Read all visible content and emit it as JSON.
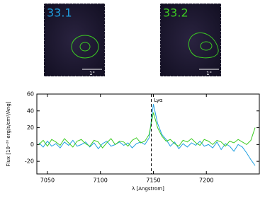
{
  "panels": [
    {
      "label": "33.1",
      "scale": "1\""
    },
    {
      "label": "33.2",
      "scale": "1\""
    }
  ],
  "chart_data": {
    "type": "line",
    "xlabel": "λ [Angstrom]",
    "ylabel": "Flux [10⁻²⁰ erg/s/cm²/Ang]",
    "x": [
      7042,
      7046,
      7050,
      7054,
      7058,
      7062,
      7066,
      7070,
      7074,
      7078,
      7082,
      7086,
      7090,
      7094,
      7098,
      7102,
      7106,
      7110,
      7114,
      7118,
      7122,
      7126,
      7130,
      7134,
      7138,
      7142,
      7146,
      7150,
      7154,
      7158,
      7162,
      7166,
      7170,
      7174,
      7178,
      7182,
      7186,
      7190,
      7194,
      7198,
      7202,
      7206,
      7210,
      7214,
      7218,
      7222,
      7226,
      7230,
      7234,
      7238,
      7242,
      7246
    ],
    "series": [
      {
        "color": "#1f9fe0",
        "values": [
          2,
          -3,
          4,
          -2,
          1,
          -4,
          3,
          -1,
          5,
          -2,
          0,
          3,
          -3,
          2,
          -5,
          1,
          4,
          -2,
          0,
          3,
          -1,
          2,
          -4,
          1,
          3,
          0,
          8,
          48,
          25,
          12,
          6,
          -2,
          3,
          -5,
          1,
          -3,
          2,
          -1,
          4,
          -2,
          0,
          -4,
          3,
          -6,
          1,
          -2,
          -8,
          0,
          -3,
          -10,
          -18,
          -25
        ]
      },
      {
        "color": "#3ccc22",
        "values": [
          0,
          5,
          -2,
          6,
          3,
          -1,
          7,
          2,
          -3,
          4,
          6,
          1,
          -2,
          5,
          3,
          -4,
          2,
          7,
          0,
          4,
          3,
          -2,
          5,
          8,
          2,
          4,
          12,
          38,
          20,
          10,
          4,
          6,
          1,
          -2,
          5,
          3,
          7,
          2,
          -1,
          6,
          4,
          0,
          5,
          3,
          -2,
          4,
          2,
          6,
          3,
          0,
          5,
          20
        ]
      }
    ],
    "annotations": [
      {
        "x": 7148,
        "text": "Lyα"
      }
    ],
    "xlim": [
      7040,
      7250
    ],
    "xticks": [
      7050,
      7100,
      7150,
      7200
    ],
    "ylim": [
      -35,
      60
    ],
    "yticks": [
      -20,
      0,
      20,
      40,
      60
    ]
  }
}
